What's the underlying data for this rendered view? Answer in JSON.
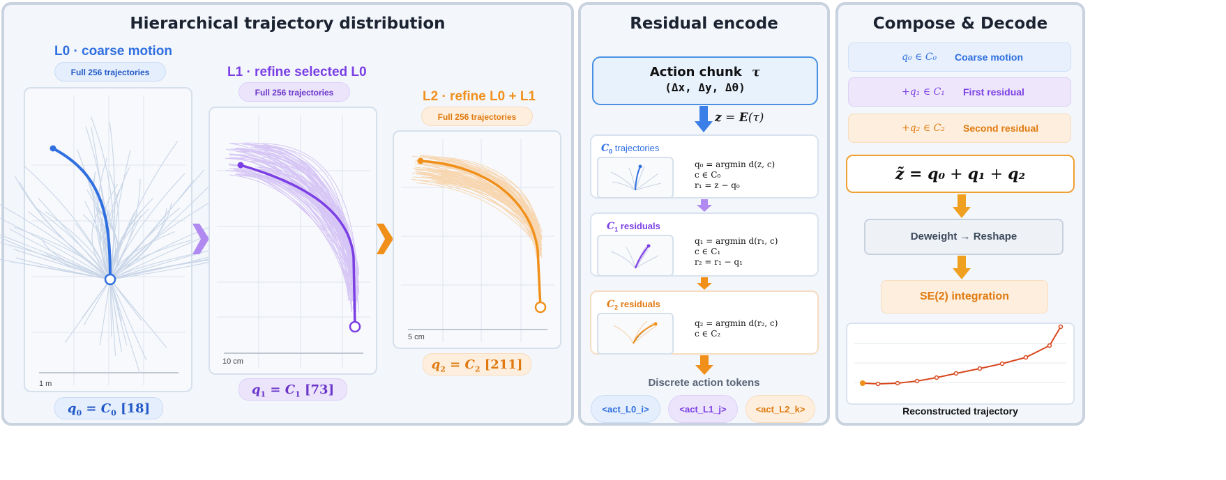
{
  "panel_left": {
    "title": "Hierarchical trajectory distribution",
    "l0": {
      "title": "L0 · coarse motion",
      "pill": "Full 256 trajectories",
      "scale": "1 m",
      "q_label": "q",
      "q_sub": "0",
      "q_eq": " = ",
      "c_label": "C",
      "c_sub": "0",
      "index": " [18]"
    },
    "l1": {
      "title": "L1 · refine selected L0",
      "pill": "Full 256 trajectories",
      "scale": "10 cm",
      "q_label": "q",
      "q_sub": "1",
      "q_eq": " = ",
      "c_label": "C",
      "c_sub": "1",
      "index": " [73]"
    },
    "l2": {
      "title": "L2 · refine L0 + L1",
      "pill": "Full 256 trajectories",
      "scale": "5 cm",
      "q_label": "q",
      "q_sub": "2",
      "q_eq": " = ",
      "c_label": "C",
      "c_sub": "2",
      "index": " [211]"
    }
  },
  "panel_mid": {
    "title": "Residual encode",
    "action_chunk": {
      "line1": "Action chunk",
      "tau": "τ",
      "line2": "(Δx, Δy, Δθ)"
    },
    "encoder": {
      "z": "z",
      "eq": " = ",
      "E": "E",
      "arg": "(τ)"
    },
    "stage0": {
      "c": "C",
      "sub": "0",
      "label": "trajectories",
      "eq1": "q₀ = argmin d(z, c)",
      "eq2": "c ∈ C₀",
      "eq3": "r₁ = z − q₀"
    },
    "stage1": {
      "c": "C",
      "sub": "1",
      "label": "residuals",
      "eq1": "q₁ = argmin d(r₁, c)",
      "eq2": "c ∈ C₁",
      "eq3": "r₂ = r₁ − q₁"
    },
    "stage2": {
      "c": "C",
      "sub": "2",
      "label": "residuals",
      "eq1": "q₂ = argmin d(r₂, c)",
      "eq2": "c ∈ C₂"
    },
    "tokens_title": "Discrete action tokens",
    "tokens": [
      "<act_L0_i>",
      "<act_L1_j>",
      "<act_L2_k>"
    ]
  },
  "panel_right": {
    "title": "Compose & Decode",
    "rows": [
      {
        "expr": "q₀ ∈ C₀",
        "label": "Coarse motion"
      },
      {
        "expr": "+q₁ ∈ C₁",
        "label": "First residual"
      },
      {
        "expr": "+q₂ ∈ C₂",
        "label": "Second residual"
      }
    ],
    "sum": {
      "lhs": "z̃ = ",
      "q0": "q₀",
      "plus1": " + ",
      "q1": "q₁",
      "plus2": " + ",
      "q2": "q₂"
    },
    "deweight": "Deweight → Reshape",
    "se2": "SE(2) integration",
    "reconstructed": "Reconstructed trajectory"
  },
  "colors": {
    "blue": "#2f6fe0",
    "purple": "#7b3fe4",
    "orange": "#f0901a",
    "red": "#d9471c"
  }
}
